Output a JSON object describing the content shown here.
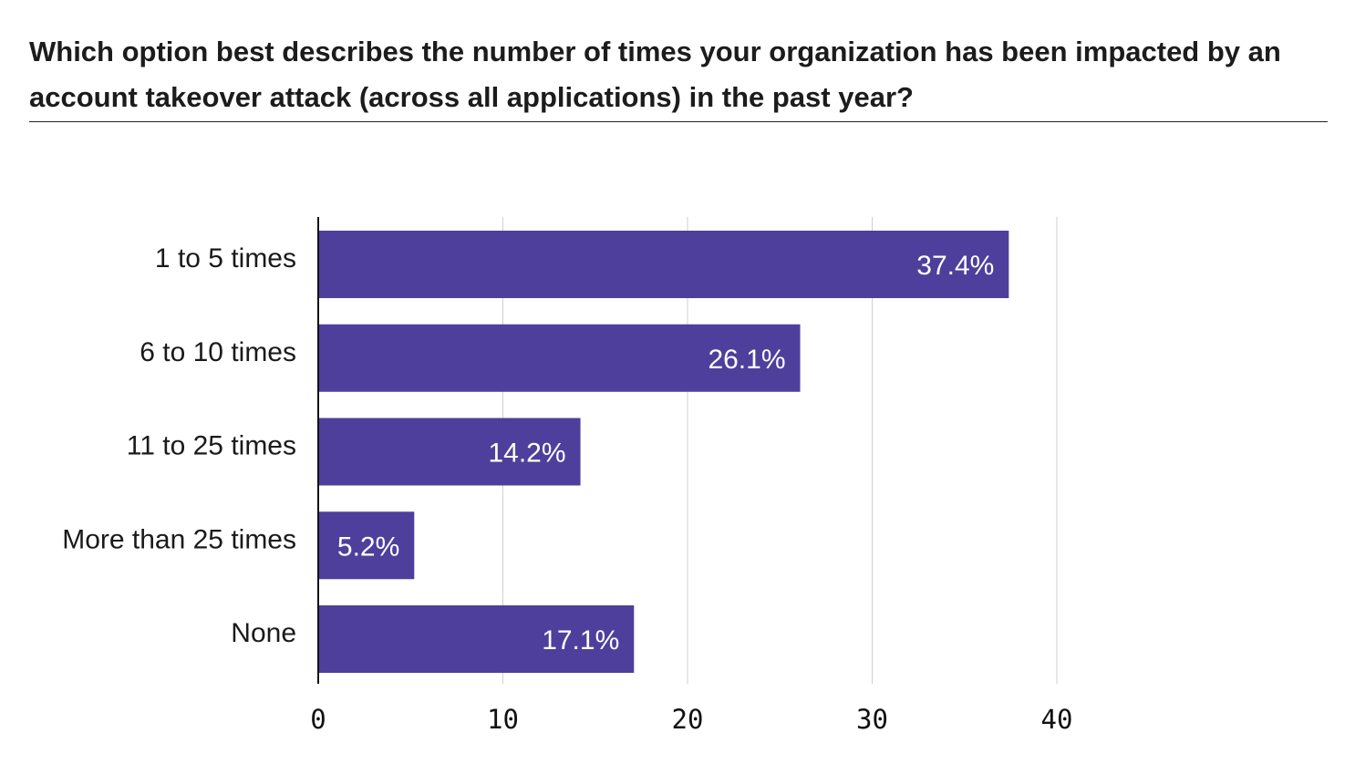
{
  "title": "Which option best describes the number of times your organization has been impacted by an account takeover attack (across all applications) in the past year?",
  "chart_data": {
    "type": "bar",
    "orientation": "horizontal",
    "title": "Which option best describes the number of times your organization has been impacted by an account takeover attack (across all applications) in the past year?",
    "categories": [
      "1 to 5 times",
      "6 to 10 times",
      "11 to 25 times",
      "More than 25 times",
      "None"
    ],
    "values": [
      37.4,
      26.1,
      14.2,
      5.2,
      17.1
    ],
    "value_labels": [
      "37.4%",
      "26.1%",
      "14.2%",
      "5.2%",
      "17.1%"
    ],
    "xticks": [
      "0",
      "10",
      "20",
      "30",
      "40"
    ],
    "xlim": [
      0,
      40
    ],
    "xlabel": "",
    "ylabel": "",
    "grid": true,
    "bar_color": "#4f3f9c",
    "label_color": "#ffffff"
  }
}
